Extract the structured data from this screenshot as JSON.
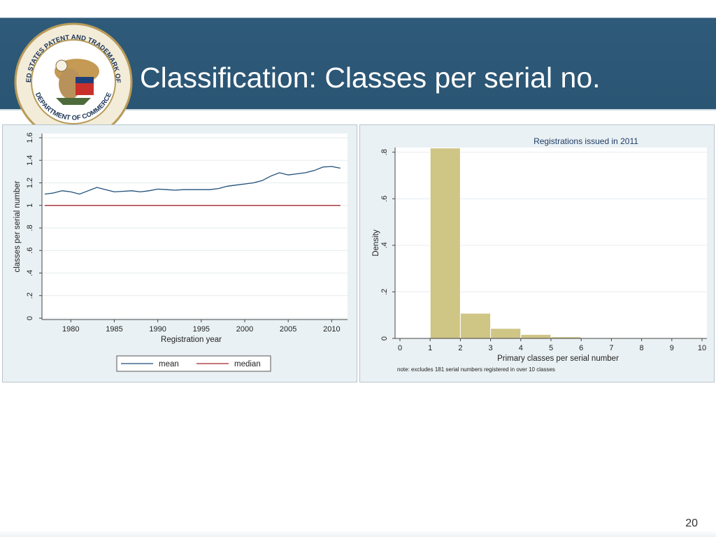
{
  "slide": {
    "title": "Classification: Classes per serial no.",
    "page_number": "20",
    "seal_text_top": "UNITED STATES PATENT AND TRADEMARK OFFICE",
    "seal_text_bottom": "DEPARTMENT OF COMMERCE"
  },
  "colors": {
    "header": "#2c5675",
    "mean": "#1f4e79",
    "median": "#a3242b",
    "bars": "#cfc585",
    "bar_edge": "#ffffff"
  },
  "chart_data": [
    {
      "type": "line",
      "xlabel": "Registration year",
      "ylabel": "classes per serial number",
      "xlim": [
        1977,
        2011
      ],
      "ylim": [
        0,
        1.6
      ],
      "x_ticks": [
        "1980",
        "1985",
        "1990",
        "1995",
        "2000",
        "2005",
        "2010"
      ],
      "y_ticks": [
        "0",
        ".2",
        ".4",
        ".6",
        ".8",
        "1",
        "1.2",
        "1.4",
        "1.6"
      ],
      "grid": true,
      "legend_position": "bottom",
      "x": [
        1977,
        1978,
        1979,
        1980,
        1981,
        1982,
        1983,
        1984,
        1985,
        1986,
        1987,
        1988,
        1989,
        1990,
        1991,
        1992,
        1993,
        1994,
        1995,
        1996,
        1997,
        1998,
        1999,
        2000,
        2001,
        2002,
        2003,
        2004,
        2005,
        2006,
        2007,
        2008,
        2009,
        2010,
        2011
      ],
      "series": [
        {
          "name": "mean",
          "values": [
            1.1,
            1.11,
            1.13,
            1.12,
            1.1,
            1.13,
            1.16,
            1.14,
            1.12,
            1.125,
            1.13,
            1.12,
            1.13,
            1.145,
            1.14,
            1.135,
            1.14,
            1.14,
            1.14,
            1.14,
            1.15,
            1.17,
            1.18,
            1.19,
            1.2,
            1.22,
            1.26,
            1.29,
            1.27,
            1.28,
            1.29,
            1.31,
            1.34,
            1.345,
            1.33
          ]
        },
        {
          "name": "median",
          "values": [
            1,
            1,
            1,
            1,
            1,
            1,
            1,
            1,
            1,
            1,
            1,
            1,
            1,
            1,
            1,
            1,
            1,
            1,
            1,
            1,
            1,
            1,
            1,
            1,
            1,
            1,
            1,
            1,
            1,
            1,
            1,
            1,
            1,
            1,
            1
          ]
        }
      ]
    },
    {
      "type": "bar",
      "title": "Registrations issued in 2011",
      "xlabel": "Primary classes per serial number",
      "ylabel": "Density",
      "note": "note: excludes 181 serial numbers registered in over 10 classes",
      "xlim": [
        0,
        10
      ],
      "ylim": [
        0,
        0.8
      ],
      "x_ticks": [
        "0",
        "1",
        "2",
        "3",
        "4",
        "5",
        "6",
        "7",
        "8",
        "9",
        "10"
      ],
      "y_ticks": [
        "0",
        ".2",
        ".4",
        ".6",
        ".8"
      ],
      "grid": true,
      "bins": [
        [
          1,
          2
        ],
        [
          2,
          3
        ],
        [
          3,
          4
        ],
        [
          4,
          5
        ],
        [
          5,
          6
        ],
        [
          6,
          7
        ],
        [
          7,
          8
        ],
        [
          8,
          9
        ],
        [
          9,
          10
        ]
      ],
      "values": [
        0.818,
        0.108,
        0.043,
        0.017,
        0.007,
        0.003,
        0.002,
        0.001,
        0.001
      ]
    }
  ]
}
